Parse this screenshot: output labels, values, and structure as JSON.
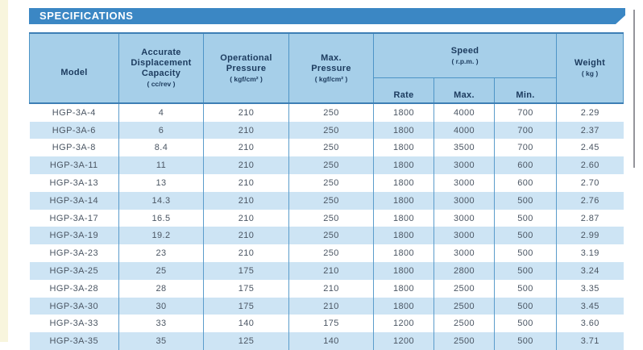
{
  "banner": {
    "title": "SPECIFICATIONS"
  },
  "colors": {
    "banner_blue": "#3b87c4",
    "header_cell_blue": "#a6cfe9",
    "row_stripe_blue": "#cde4f4",
    "border_blue": "#4e94c6",
    "header_text": "#1c3b5e",
    "data_text": "#4b5663",
    "page_edge_cream": "#f8f5dd"
  },
  "table": {
    "headers": {
      "model": "Model",
      "capacity_title": "Accurate\nDisplacement\nCapacity",
      "capacity_unit": "( cc/rev )",
      "op_pressure_title": "Operational\nPressure",
      "op_pressure_unit": "( kgf/cm² )",
      "max_pressure_title": "Max.\nPressure",
      "max_pressure_unit": "( kgf/cm² )",
      "speed_title": "Speed",
      "speed_unit": "( r.p.m. )",
      "speed_sub": [
        "Rate",
        "Max.",
        "Min."
      ],
      "weight_title": "Weight",
      "weight_unit": "( kg )"
    },
    "rows": [
      [
        "HGP-3A-4",
        "4",
        "210",
        "250",
        "1800",
        "4000",
        "700",
        "2.29"
      ],
      [
        "HGP-3A-6",
        "6",
        "210",
        "250",
        "1800",
        "4000",
        "700",
        "2.37"
      ],
      [
        "HGP-3A-8",
        "8.4",
        "210",
        "250",
        "1800",
        "3500",
        "700",
        "2.45"
      ],
      [
        "HGP-3A-11",
        "11",
        "210",
        "250",
        "1800",
        "3000",
        "600",
        "2.60"
      ],
      [
        "HGP-3A-13",
        "13",
        "210",
        "250",
        "1800",
        "3000",
        "600",
        "2.70"
      ],
      [
        "HGP-3A-14",
        "14.3",
        "210",
        "250",
        "1800",
        "3000",
        "500",
        "2.76"
      ],
      [
        "HGP-3A-17",
        "16.5",
        "210",
        "250",
        "1800",
        "3000",
        "500",
        "2.87"
      ],
      [
        "HGP-3A-19",
        "19.2",
        "210",
        "250",
        "1800",
        "3000",
        "500",
        "2.99"
      ],
      [
        "HGP-3A-23",
        "23",
        "210",
        "250",
        "1800",
        "3000",
        "500",
        "3.19"
      ],
      [
        "HGP-3A-25",
        "25",
        "175",
        "210",
        "1800",
        "2800",
        "500",
        "3.24"
      ],
      [
        "HGP-3A-28",
        "28",
        "175",
        "210",
        "1800",
        "2500",
        "500",
        "3.35"
      ],
      [
        "HGP-3A-30",
        "30",
        "175",
        "210",
        "1800",
        "2500",
        "500",
        "3.45"
      ],
      [
        "HGP-3A-33",
        "33",
        "140",
        "175",
        "1200",
        "2500",
        "500",
        "3.60"
      ],
      [
        "HGP-3A-35",
        "35",
        "125",
        "140",
        "1200",
        "2500",
        "500",
        "3.71"
      ]
    ]
  }
}
